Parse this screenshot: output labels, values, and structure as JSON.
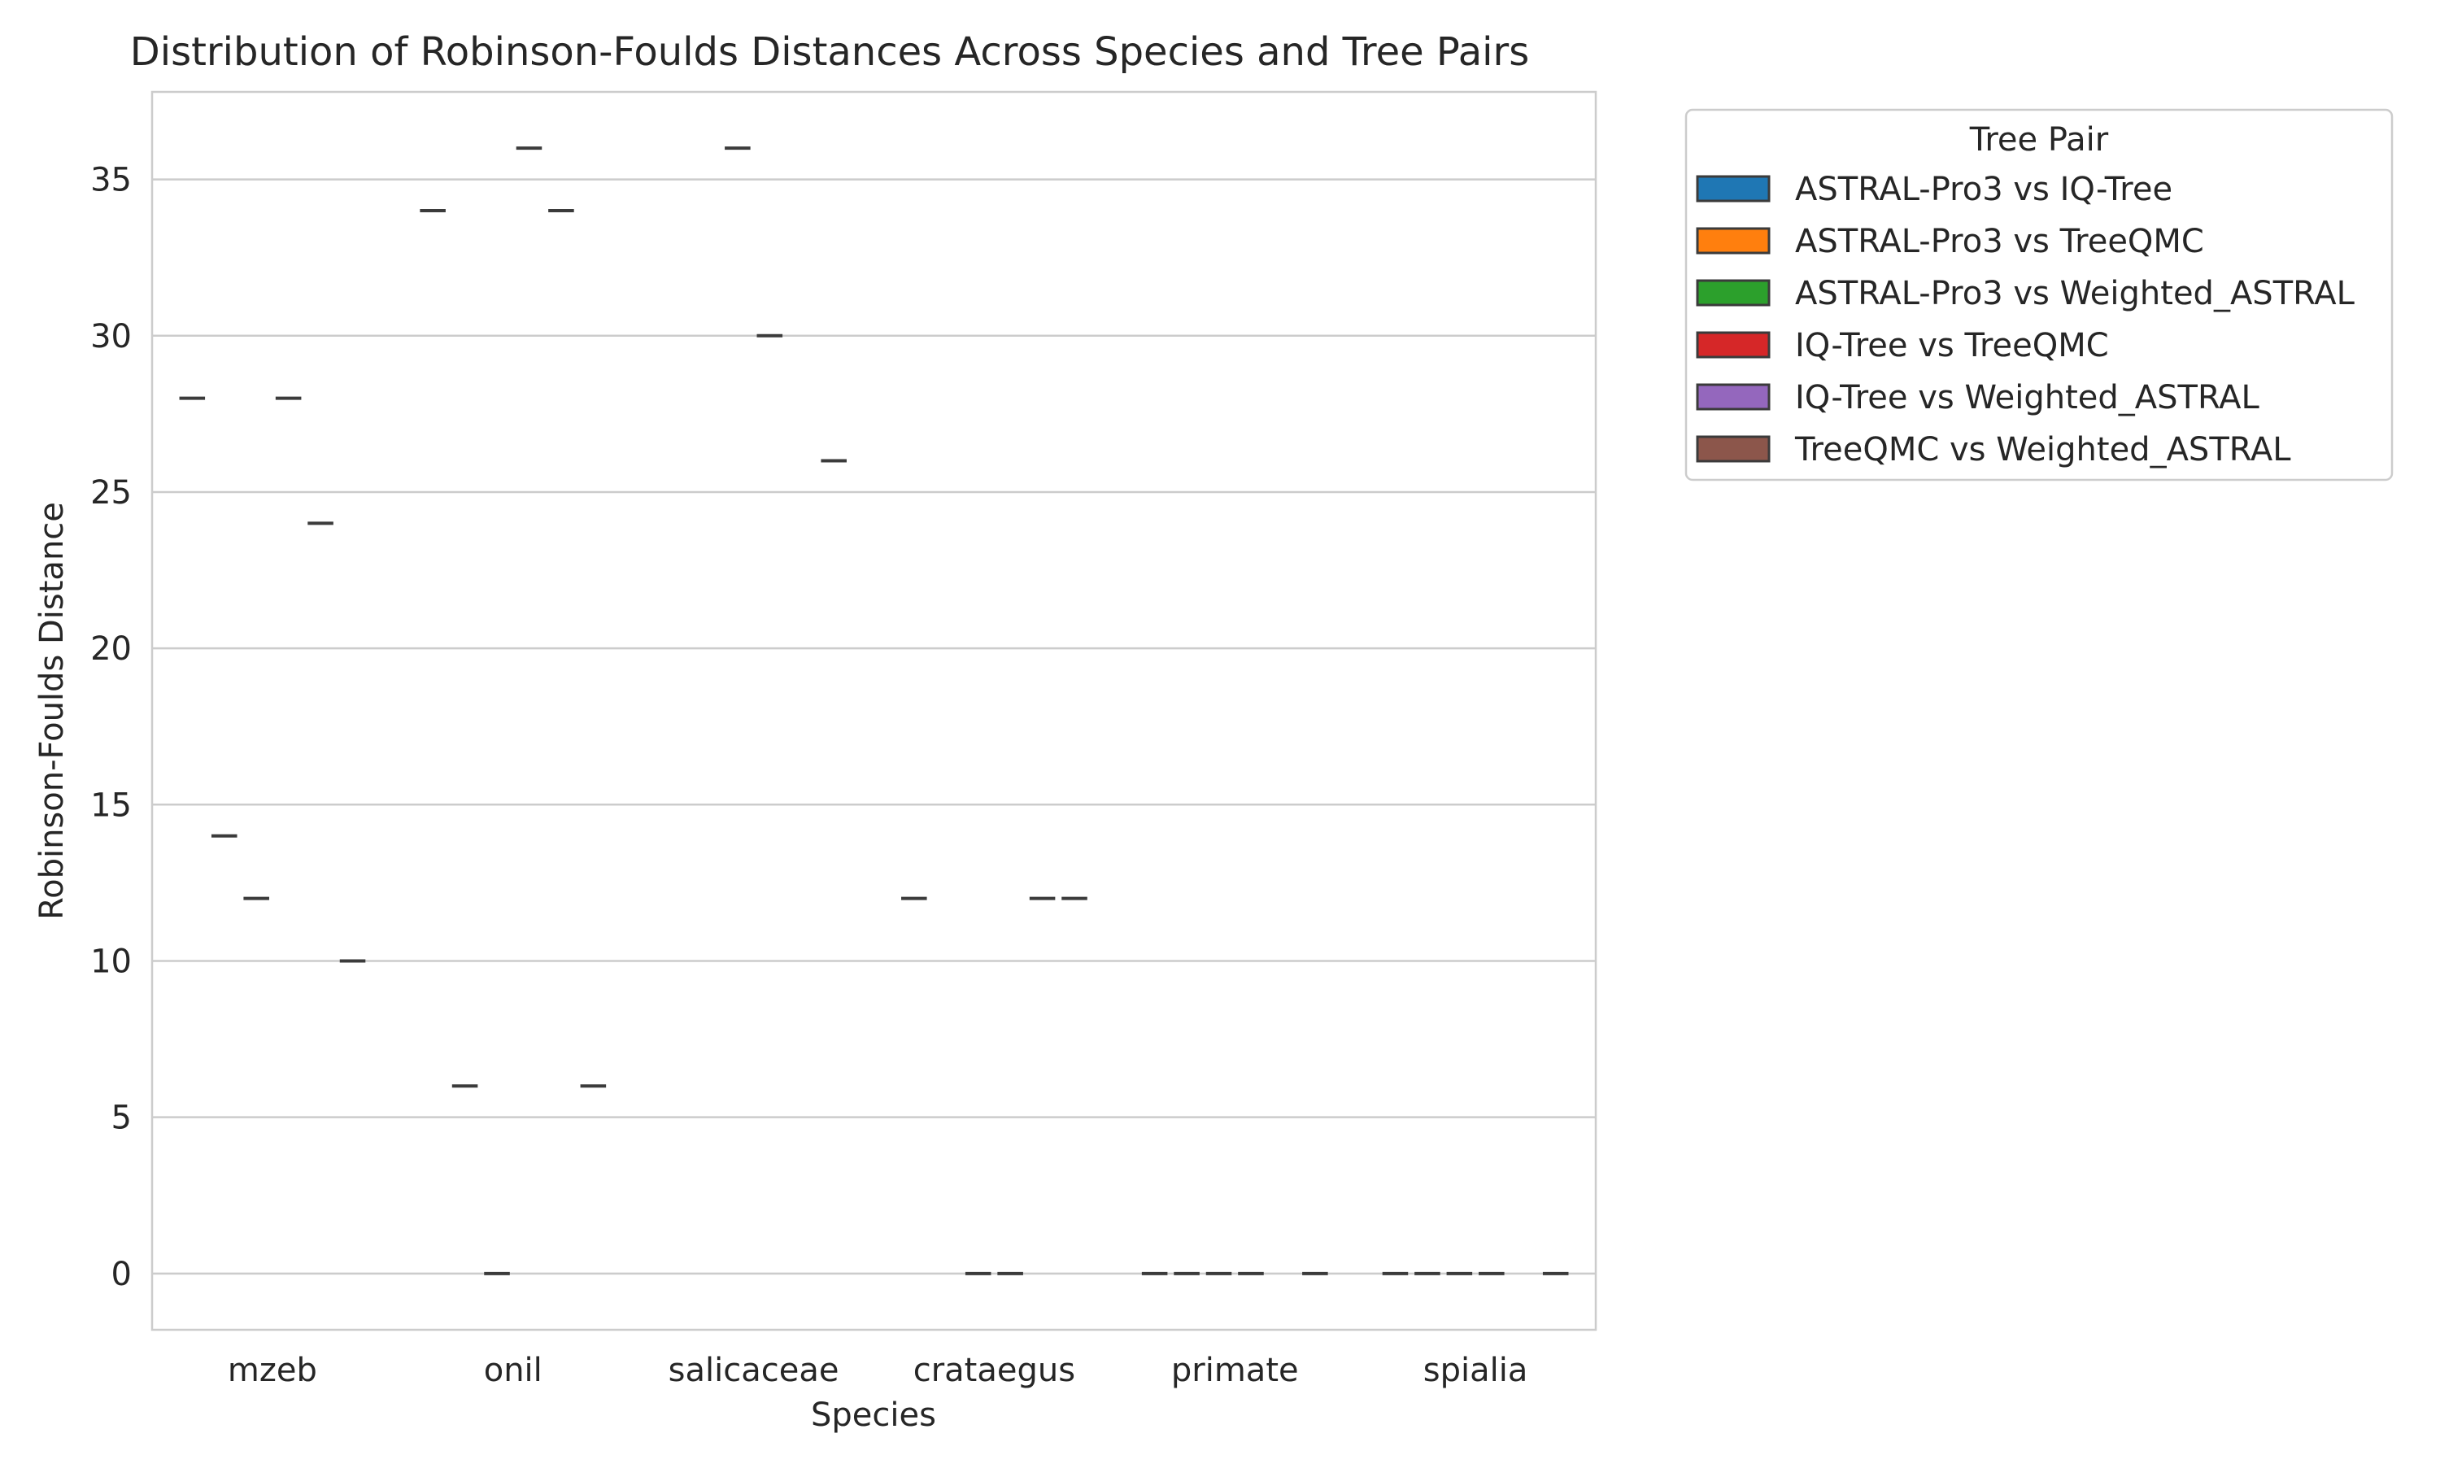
{
  "chart_data": {
    "type": "box",
    "title": "Distribution of Robinson-Foulds Distances Across Species and Tree Pairs",
    "xlabel": "Species",
    "ylabel": "Robinson-Foulds Distance",
    "ylim": [
      -1.8,
      37.8
    ],
    "yticks": [
      0,
      5,
      10,
      15,
      20,
      25,
      30,
      35
    ],
    "grid": "horizontal",
    "legend_title": "Tree Pair",
    "legend_position": "outside-right",
    "categories": [
      "mzeb",
      "onil",
      "salicaceae",
      "crataegus",
      "primate",
      "spialia"
    ],
    "series": [
      {
        "name": "ASTRAL-Pro3 vs IQ-Tree",
        "color": "#1f77b4",
        "values": [
          28,
          34,
          null,
          12,
          0,
          0
        ]
      },
      {
        "name": "ASTRAL-Pro3 vs TreeQMC",
        "color": "#ff7f0e",
        "values": [
          14,
          6,
          null,
          null,
          0,
          0
        ]
      },
      {
        "name": "ASTRAL-Pro3 vs Weighted_ASTRAL",
        "color": "#2ca02c",
        "values": [
          12,
          0,
          36,
          0,
          0,
          0
        ]
      },
      {
        "name": "IQ-Tree vs TreeQMC",
        "color": "#d62728",
        "values": [
          28,
          36,
          30,
          0,
          0,
          0
        ]
      },
      {
        "name": "IQ-Tree vs Weighted_ASTRAL",
        "color": "#9467bd",
        "values": [
          24,
          34,
          null,
          12,
          null,
          null
        ]
      },
      {
        "name": "TreeQMC vs Weighted_ASTRAL",
        "color": "#8c564b",
        "values": [
          10,
          6,
          26,
          12,
          0,
          0
        ]
      }
    ]
  }
}
